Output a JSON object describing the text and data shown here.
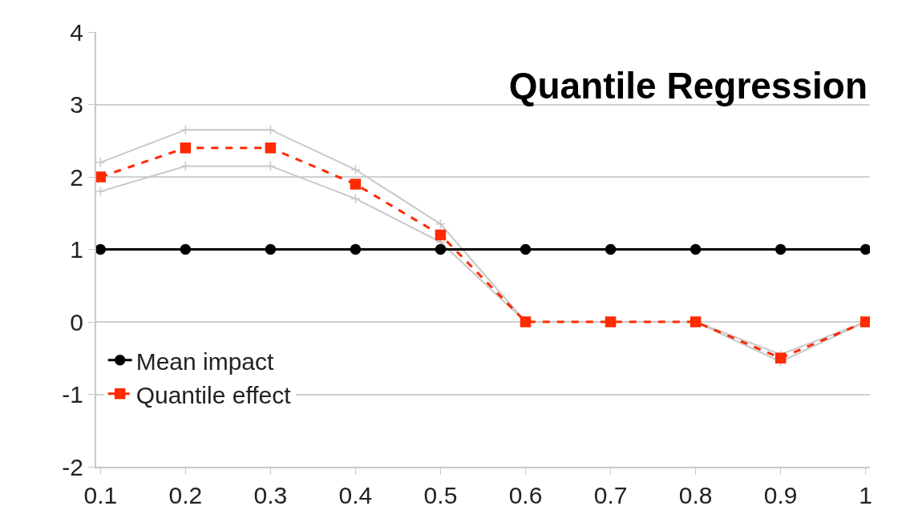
{
  "chart_data": {
    "type": "line",
    "title": "Quantile Regression",
    "categories": [
      "0.1",
      "0.2",
      "0.3",
      "0.4",
      "0.5",
      "0.6",
      "0.7",
      "0.8",
      "0.9",
      "1"
    ],
    "series": [
      {
        "color": "#c8c8c8",
        "marker": "cross",
        "line_style": "solid",
        "values": [
          1.8,
          2.15,
          2.15,
          1.7,
          1.1,
          0,
          0,
          0,
          -0.55,
          0
        ]
      },
      {
        "color": "#c8c8c8",
        "marker": "cross",
        "line_style": "solid",
        "values": [
          2.2,
          2.65,
          2.65,
          2.1,
          1.35,
          0,
          0,
          0,
          -0.45,
          0
        ]
      },
      {
        "name": "Mean impact",
        "color": "#000000",
        "marker": "circle",
        "line_style": "solid",
        "values": [
          1,
          1,
          1,
          1,
          1,
          1,
          1,
          1,
          1,
          1
        ]
      },
      {
        "name": "Quantile effect",
        "color": "#ff2a00",
        "marker": "square",
        "line_style": "dashed",
        "values": [
          2.0,
          2.4,
          2.4,
          1.9,
          1.2,
          0,
          0,
          0,
          -0.5,
          0
        ]
      }
    ],
    "ylim": [
      -2,
      4
    ],
    "yticks": [
      -2,
      -1,
      0,
      1,
      2,
      3,
      4
    ],
    "grid": "y",
    "legend": "bottom left"
  }
}
